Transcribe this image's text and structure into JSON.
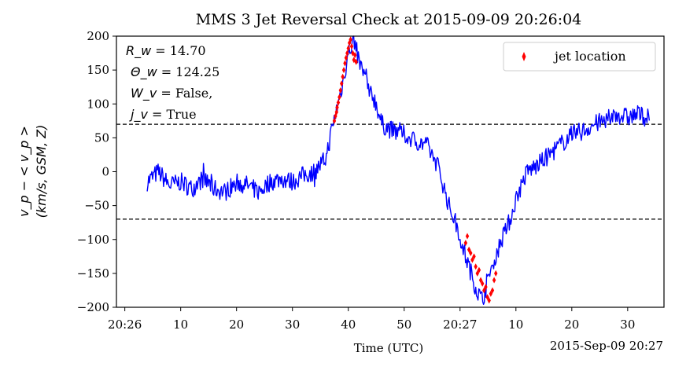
{
  "chart_data": {
    "type": "line",
    "title": "MMS 3 Jet Reversal Check at 2015-09-09 20:26:04",
    "xlabel": "Time (UTC)",
    "x_offset_label": "2015-Sep-09 20:27",
    "ylabel_line1": "v_p − < v_p >",
    "ylabel_line2": "(km/s, GSM, Z)",
    "ylim": [
      -200,
      200
    ],
    "xlim_seconds": [
      -1.5,
      96.5
    ],
    "y_ticks": [
      -200,
      -150,
      -100,
      -50,
      0,
      50,
      100,
      150,
      200
    ],
    "y_tick_labels": [
      "−200",
      "−150",
      "−100",
      "−50",
      "0",
      "50",
      "100",
      "150",
      "200"
    ],
    "x_ticks_seconds": [
      0,
      10,
      20,
      30,
      40,
      50,
      60,
      70,
      80,
      90
    ],
    "x_tick_labels": [
      "20:26",
      "10",
      "20",
      "30",
      "40",
      "50",
      "20:27",
      "10",
      "20",
      "30"
    ],
    "thresholds": [
      70,
      -70
    ],
    "annotations": {
      "rw_label": "R_w",
      "rw_value": " = 14.70",
      "thetaw_label": "Θ_w",
      "thetaw_value": " = 124.25",
      "wv_label": "W_v",
      "wv_value": " = False,",
      "jv_label": "j_v",
      "jv_value": " = True"
    },
    "legend": {
      "label": "jet location",
      "placement": "upper right"
    },
    "series": [
      {
        "color": "#0000ff",
        "anchors": [
          [
            4,
            -15
          ],
          [
            6,
            0
          ],
          [
            8,
            -20
          ],
          [
            10,
            -15
          ],
          [
            12,
            -25
          ],
          [
            14,
            -10
          ],
          [
            16,
            -25
          ],
          [
            18,
            -30
          ],
          [
            20,
            -15
          ],
          [
            22,
            -20
          ],
          [
            24,
            -30
          ],
          [
            26,
            -15
          ],
          [
            28,
            -10
          ],
          [
            30,
            -15
          ],
          [
            32,
            -5
          ],
          [
            34,
            0
          ],
          [
            36,
            20
          ],
          [
            37,
            60
          ],
          [
            38,
            95
          ],
          [
            39,
            130
          ],
          [
            40,
            175
          ],
          [
            41,
            195
          ],
          [
            42,
            160
          ],
          [
            43,
            140
          ],
          [
            44,
            120
          ],
          [
            45,
            100
          ],
          [
            46,
            70
          ],
          [
            48,
            60
          ],
          [
            50,
            55
          ],
          [
            52,
            45
          ],
          [
            54,
            40
          ],
          [
            56,
            10
          ],
          [
            57,
            -20
          ],
          [
            58,
            -50
          ],
          [
            59,
            -70
          ],
          [
            60,
            -95
          ],
          [
            61,
            -125
          ],
          [
            62,
            -150
          ],
          [
            63,
            -175
          ],
          [
            64,
            -190
          ],
          [
            65,
            -160
          ],
          [
            66,
            -130
          ],
          [
            67,
            -110
          ],
          [
            68,
            -90
          ],
          [
            69,
            -70
          ],
          [
            70,
            -40
          ],
          [
            71,
            -20
          ],
          [
            72,
            0
          ],
          [
            74,
            10
          ],
          [
            76,
            25
          ],
          [
            78,
            40
          ],
          [
            80,
            55
          ],
          [
            82,
            60
          ],
          [
            84,
            70
          ],
          [
            86,
            75
          ],
          [
            88,
            85
          ],
          [
            90,
            80
          ],
          [
            92,
            85
          ],
          [
            94,
            78
          ]
        ],
        "noise_amplitude": 14
      },
      {
        "name": "jet location",
        "color": "#ff0000",
        "marker": "thin_diamond",
        "points": [
          [
            37.5,
            75
          ],
          [
            37.7,
            82
          ],
          [
            37.9,
            88
          ],
          [
            38.0,
            95
          ],
          [
            38.2,
            102
          ],
          [
            38.4,
            110
          ],
          [
            38.6,
            120
          ],
          [
            38.8,
            130
          ],
          [
            39.0,
            140
          ],
          [
            39.2,
            150
          ],
          [
            39.4,
            160
          ],
          [
            39.6,
            168
          ],
          [
            39.8,
            175
          ],
          [
            40.0,
            182
          ],
          [
            40.2,
            190
          ],
          [
            40.4,
            195
          ],
          [
            40.6,
            185
          ],
          [
            40.8,
            175
          ],
          [
            41.0,
            165
          ],
          [
            41.2,
            172
          ],
          [
            41.4,
            162
          ],
          [
            61.0,
            -105
          ],
          [
            61.3,
            -95
          ],
          [
            61.6,
            -115
          ],
          [
            61.9,
            -120
          ],
          [
            62.2,
            -130
          ],
          [
            62.5,
            -125
          ],
          [
            62.8,
            -140
          ],
          [
            63.1,
            -150
          ],
          [
            63.4,
            -145
          ],
          [
            63.7,
            -160
          ],
          [
            64.0,
            -165
          ],
          [
            64.3,
            -175
          ],
          [
            64.6,
            -170
          ],
          [
            64.9,
            -185
          ],
          [
            65.2,
            -190
          ],
          [
            65.5,
            -180
          ],
          [
            65.8,
            -175
          ],
          [
            66.1,
            -160
          ],
          [
            66.4,
            -150
          ]
        ]
      }
    ]
  }
}
